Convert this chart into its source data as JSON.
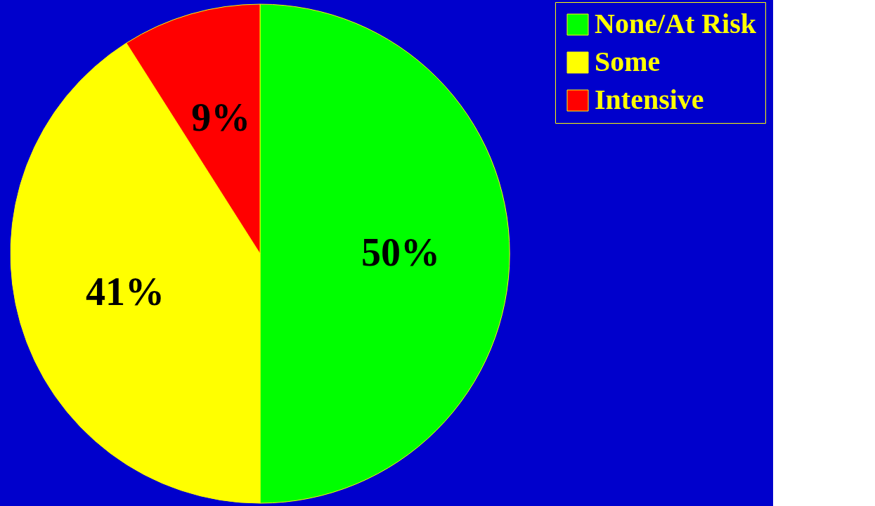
{
  "chart_data": {
    "type": "pie",
    "categories": [
      "None/At Risk",
      "Some",
      "Intensive"
    ],
    "values": [
      50,
      41,
      9
    ],
    "colors": [
      "#00ff00",
      "#ffff00",
      "#ff0000"
    ],
    "value_labels": [
      "50%",
      "41%",
      "9%"
    ],
    "legend": "right"
  }
}
